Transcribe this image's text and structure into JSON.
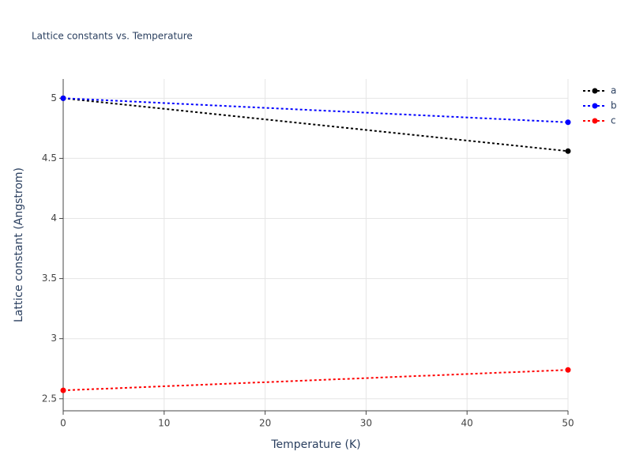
{
  "chart_data": {
    "type": "line",
    "title": "Lattice constants vs. Temperature",
    "x_label": "Temperature (K)",
    "y_label": "Lattice constant (Angstrom)",
    "x": [
      0,
      50
    ],
    "series": [
      {
        "name": "a",
        "color": "#000000",
        "values": [
          5.0,
          4.56
        ]
      },
      {
        "name": "b",
        "color": "#0000ff",
        "values": [
          5.0,
          4.8
        ]
      },
      {
        "name": "c",
        "color": "#ff0000",
        "values": [
          2.57,
          2.74
        ]
      }
    ],
    "xlim": [
      0,
      50
    ],
    "xticks": [
      0,
      10,
      20,
      30,
      40,
      50
    ],
    "ylim": [
      2.4,
      5.16
    ],
    "yticks": [
      2.5,
      3,
      3.5,
      4,
      4.5,
      5
    ],
    "grid": true,
    "legend": "top-right",
    "line_style": "dotted"
  }
}
